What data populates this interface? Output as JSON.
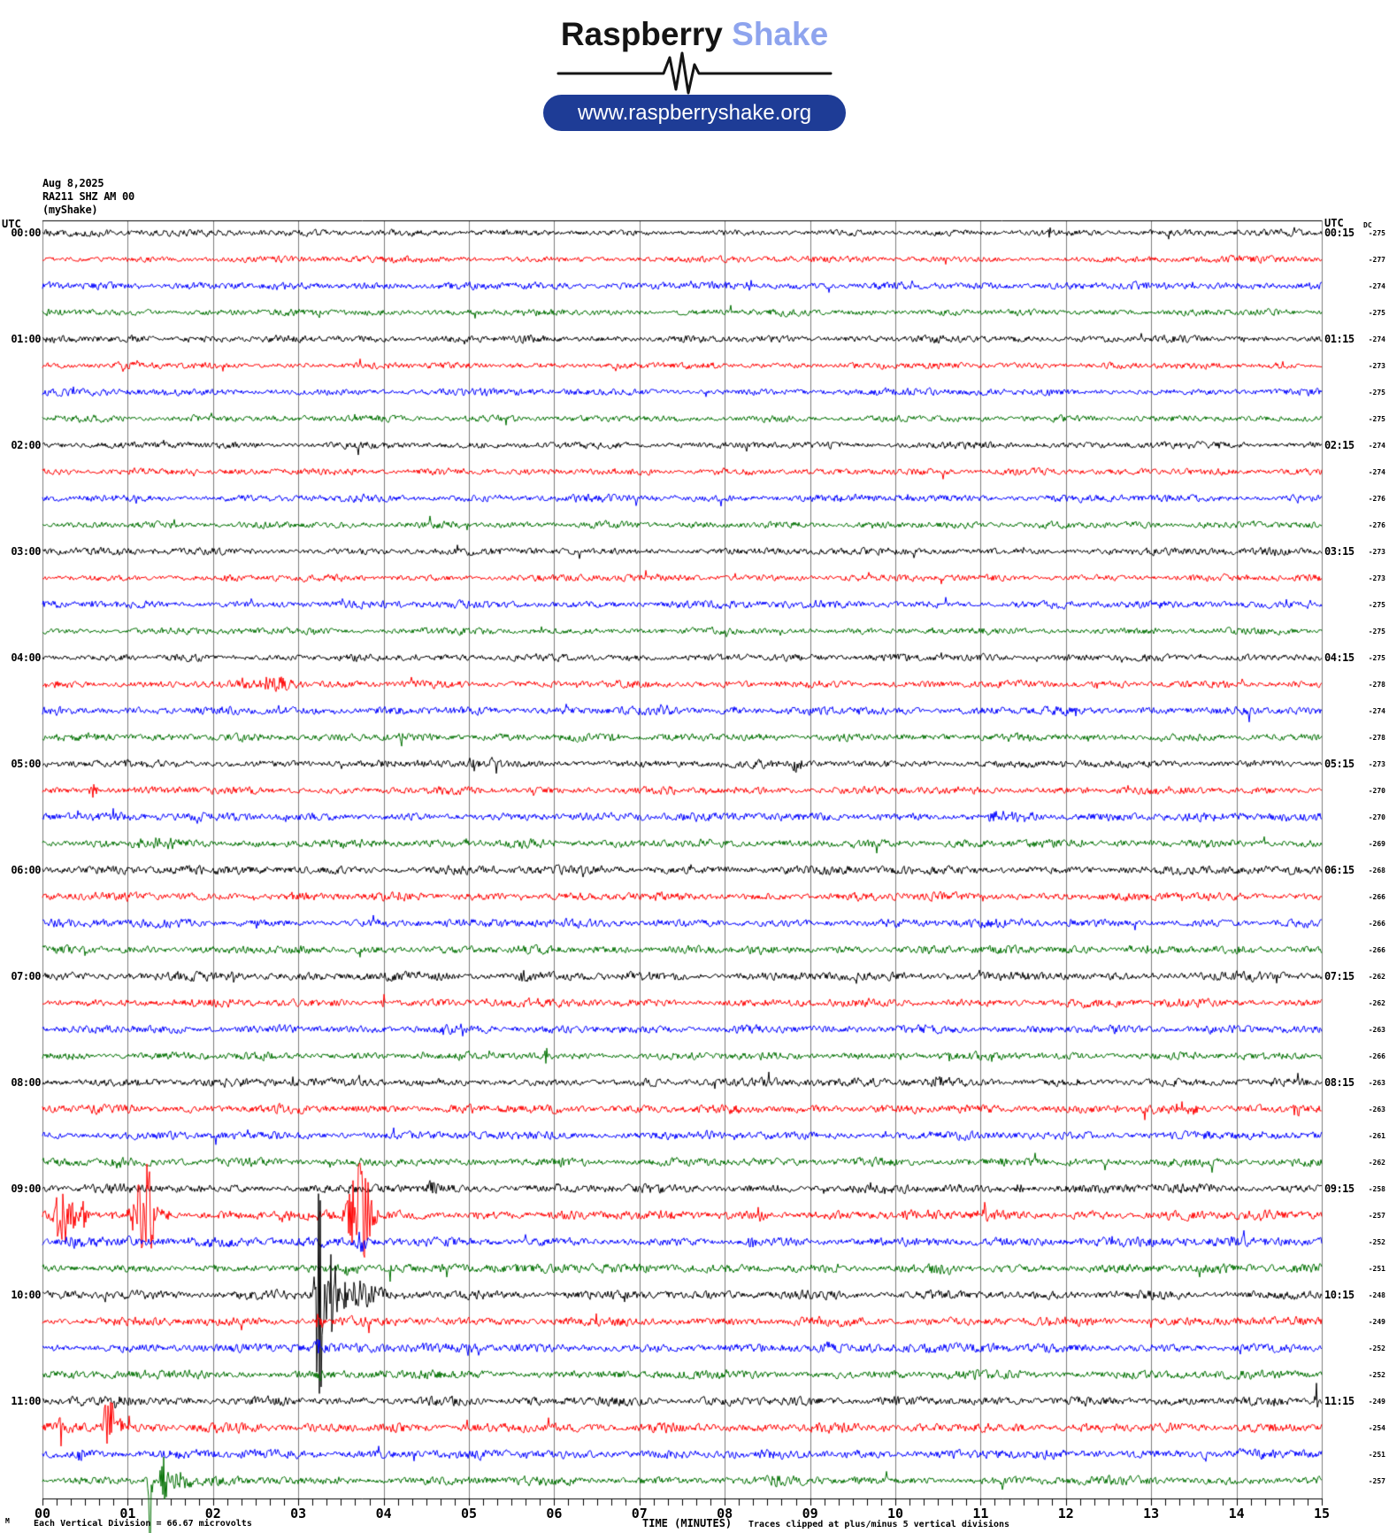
{
  "header": {
    "brand_primary": "Raspberry",
    "brand_secondary": "Shake",
    "url": "www.raspberryshake.org",
    "accent_color": "#8ea4ee",
    "pill_color": "#1e3c96"
  },
  "station": {
    "date": "Aug 8,2025",
    "code": "RA211 SHZ AM 00",
    "network": "(myShake)"
  },
  "labels": {
    "utc_left": "UTC",
    "utc_right": "UTC",
    "dc_header": "DC",
    "x_axis_title": "TIME (MINUTES)",
    "scale_note": "Each Vertical Division =  66.67 microvolts",
    "clip_note": "Traces clipped at plus/minus 5 vertical divisions",
    "corner_glyph": "M"
  },
  "chart_data": {
    "type": "line",
    "kind": "helicorder",
    "title": "RA211 SHZ AM 00 helicorder, Aug 8,2025",
    "xlabel": "TIME (MINUTES)",
    "x_range": [
      0,
      15
    ],
    "minutes_per_row": 15,
    "x_ticks": [
      "00",
      "01",
      "02",
      "03",
      "04",
      "05",
      "06",
      "07",
      "08",
      "09",
      "10",
      "11",
      "12",
      "13",
      "14",
      "15"
    ],
    "minor_ticks_per_minute": 6,
    "utc_start": "00:00",
    "utc_end": "12:00",
    "trace_color_cycle": [
      "#000000",
      "#ff0000",
      "#0000ff",
      "#007000"
    ],
    "grid_color": "#7d7d7d",
    "clip_divisions": 5,
    "microvolts_per_division": 66.67,
    "rows": [
      {
        "utc_left": "00:00",
        "utc_right": "00:15",
        "dc": -275,
        "namp": 2.4,
        "events": [
          [
            11.8,
            9,
            0.03
          ]
        ]
      },
      {
        "dc": -277,
        "namp": 2.2,
        "events": []
      },
      {
        "dc": -274,
        "namp": 2.6,
        "events": [
          [
            8.3,
            5,
            0.06
          ]
        ]
      },
      {
        "dc": -275,
        "namp": 2.2,
        "events": []
      },
      {
        "utc_left": "01:00",
        "utc_right": "01:15",
        "dc": -274,
        "namp": 2.4,
        "events": []
      },
      {
        "dc": -273,
        "namp": 2.2,
        "events": []
      },
      {
        "dc": -275,
        "namp": 2.4,
        "events": []
      },
      {
        "dc": -275,
        "namp": 2.2,
        "events": []
      },
      {
        "utc_left": "02:00",
        "utc_right": "02:15",
        "dc": -274,
        "namp": 2.3,
        "events": []
      },
      {
        "dc": -274,
        "namp": 2.3,
        "events": []
      },
      {
        "dc": -276,
        "namp": 2.5,
        "events": []
      },
      {
        "dc": -276,
        "namp": 2.3,
        "events": []
      },
      {
        "utc_left": "03:00",
        "utc_right": "03:15",
        "dc": -273,
        "namp": 2.4,
        "events": []
      },
      {
        "dc": -273,
        "namp": 2.3,
        "events": []
      },
      {
        "dc": -275,
        "namp": 2.6,
        "events": [
          [
            14.85,
            7,
            0.02
          ]
        ]
      },
      {
        "dc": -275,
        "namp": 2.3,
        "events": []
      },
      {
        "utc_left": "04:00",
        "utc_right": "04:15",
        "dc": -275,
        "namp": 2.4,
        "events": []
      },
      {
        "dc": -278,
        "namp": 2.5,
        "events": [
          [
            2.7,
            8,
            0.3
          ]
        ]
      },
      {
        "dc": -274,
        "namp": 2.8,
        "events": [
          [
            7.3,
            4,
            0.1
          ]
        ]
      },
      {
        "dc": -278,
        "namp": 2.6,
        "events": [
          [
            4.2,
            6,
            0.05
          ],
          [
            6.7,
            6,
            0.06
          ]
        ]
      },
      {
        "utc_left": "05:00",
        "utc_right": "05:15",
        "dc": -273,
        "namp": 2.6,
        "events": [
          [
            5.05,
            10,
            0.05
          ],
          [
            5.3,
            8,
            0.05
          ],
          [
            8.85,
            11,
            0.05
          ]
        ]
      },
      {
        "dc": -270,
        "namp": 2.6,
        "events": [
          [
            0.6,
            7,
            0.05
          ]
        ]
      },
      {
        "dc": -270,
        "namp": 2.8,
        "events": [
          [
            11.3,
            4,
            0.4
          ]
        ]
      },
      {
        "dc": -269,
        "namp": 2.8,
        "events": [
          [
            1.3,
            4,
            0.3
          ]
        ]
      },
      {
        "utc_left": "06:00",
        "utc_right": "06:15",
        "dc": -268,
        "namp": 3.0,
        "events": []
      },
      {
        "dc": -266,
        "namp": 2.8,
        "events": []
      },
      {
        "dc": -266,
        "namp": 2.8,
        "events": []
      },
      {
        "dc": -266,
        "namp": 2.8,
        "events": [
          [
            12.75,
            7,
            0.02
          ]
        ]
      },
      {
        "utc_left": "07:00",
        "utc_right": "07:15",
        "dc": -262,
        "namp": 3.0,
        "events": [
          [
            2.25,
            7,
            0.05
          ],
          [
            5.65,
            9,
            0.07
          ]
        ]
      },
      {
        "dc": -262,
        "namp": 2.8,
        "events": [
          [
            4.0,
            10,
            0.03
          ]
        ]
      },
      {
        "dc": -263,
        "namp": 2.8,
        "events": [
          [
            4.9,
            5,
            0.06
          ]
        ]
      },
      {
        "dc": -266,
        "namp": 2.6,
        "events": [
          [
            5.9,
            15,
            0.015
          ]
        ]
      },
      {
        "utc_left": "08:00",
        "utc_right": "08:15",
        "dc": -263,
        "namp": 2.8,
        "events": [
          [
            2.2,
            6,
            0.02
          ],
          [
            10.5,
            6,
            0.12
          ]
        ]
      },
      {
        "dc": -263,
        "namp": 3.0,
        "events": [
          [
            13.4,
            7,
            0.15
          ],
          [
            14.7,
            8,
            0.08
          ]
        ]
      },
      {
        "dc": -261,
        "namp": 2.8,
        "events": [
          [
            7.8,
            8,
            0.03
          ]
        ]
      },
      {
        "dc": -262,
        "namp": 2.8,
        "events": [
          [
            0.9,
            5,
            0.12
          ]
        ]
      },
      {
        "utc_left": "09:00",
        "utc_right": "09:15",
        "dc": -258,
        "namp": 3.0,
        "events": [
          [
            4.58,
            8,
            0.05
          ],
          [
            6.07,
            7,
            0.04
          ],
          [
            11.44,
            10,
            0.04
          ]
        ]
      },
      {
        "dc": -257,
        "namp": 3.2,
        "events": [
          [
            0.26,
            50,
            0.1
          ],
          [
            0.49,
            22,
            0.04
          ],
          [
            0.82,
            10,
            0.04
          ],
          [
            1.2,
            65,
            0.12
          ],
          [
            1.47,
            16,
            0.02
          ],
          [
            2.84,
            12,
            0.06
          ],
          [
            3.72,
            60,
            0.13
          ],
          [
            8.4,
            13,
            0.05
          ],
          [
            11.05,
            9,
            0.08
          ]
        ]
      },
      {
        "dc": -252,
        "namp": 3.2,
        "events": [
          [
            0.36,
            11,
            0.07
          ],
          [
            3.72,
            16,
            0.06
          ],
          [
            8.3,
            7,
            0.06
          ]
        ]
      },
      {
        "dc": -251,
        "namp": 3.0,
        "events": [
          [
            3.62,
            9,
            0.06
          ],
          [
            4.08,
            16,
            0.025
          ],
          [
            10.6,
            5,
            0.4
          ]
        ]
      },
      {
        "utc_left": "10:00",
        "utc_right": "10:15",
        "dc": -248,
        "namp": 3.0,
        "events": [
          [
            3.24,
            150,
            0.04
          ],
          [
            3.35,
            55,
            0.12
          ],
          [
            3.7,
            16,
            0.3
          ]
        ]
      },
      {
        "dc": -249,
        "namp": 3.0,
        "events": [
          [
            3.24,
            9,
            0.04
          ]
        ]
      },
      {
        "dc": -252,
        "namp": 3.2,
        "events": [
          [
            3.24,
            10,
            0.04
          ],
          [
            5.0,
            6,
            0.06
          ],
          [
            9.2,
            7,
            0.05
          ]
        ]
      },
      {
        "dc": -252,
        "namp": 3.0,
        "events": [
          [
            3.24,
            7,
            0.04
          ]
        ]
      },
      {
        "utc_left": "11:00",
        "utc_right": "11:15",
        "dc": -249,
        "namp": 3.0,
        "events": [
          [
            0.9,
            5,
            0.15
          ],
          [
            14.93,
            26,
            0.02
          ]
        ]
      },
      {
        "dc": -254,
        "namp": 3.2,
        "events": [
          [
            0.21,
            45,
            0.012
          ],
          [
            0.8,
            42,
            0.1
          ],
          [
            1.02,
            18,
            0.02
          ]
        ]
      },
      {
        "dc": -251,
        "namp": 3.2,
        "events": [
          [
            0.44,
            6,
            0.05
          ],
          [
            13.63,
            -20,
            0.015
          ]
        ]
      },
      {
        "dc": -257,
        "namp": 3.0,
        "events": [
          [
            1.26,
            95,
            0.018
          ],
          [
            1.42,
            42,
            0.04
          ],
          [
            1.6,
            10,
            0.12
          ],
          [
            8.6,
            7,
            0.04
          ]
        ]
      }
    ]
  }
}
